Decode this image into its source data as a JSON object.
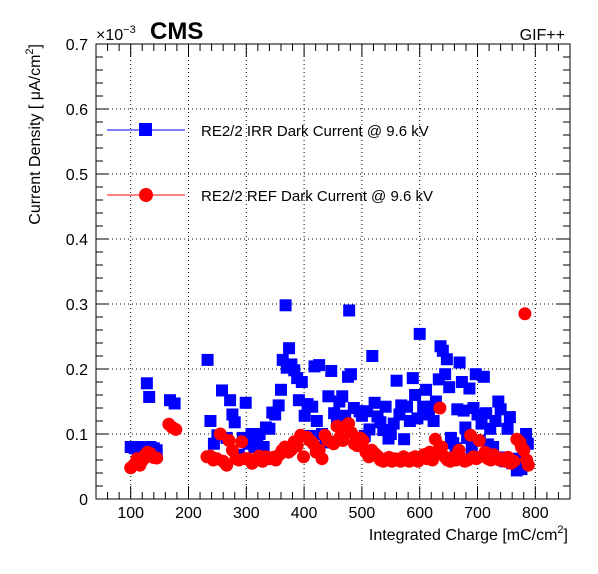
{
  "header": {
    "experiment_label": "CMS",
    "facility_label": "GIF++",
    "y_multiplier": "×10",
    "y_exponent": "−3"
  },
  "chart_data": {
    "type": "scatter",
    "xlabel": "Integrated Charge [mC/cm",
    "xlabel_sup": "2",
    "xlabel_close": "]",
    "ylabel": "Current Density [  μA/cm",
    "ylabel_sup": "2",
    "ylabel_close": "]",
    "xlim": [
      40,
      860
    ],
    "ylim": [
      0,
      0.7
    ],
    "x_ticks": [
      100,
      200,
      300,
      400,
      500,
      600,
      700,
      800
    ],
    "x_tick_labels": [
      "100",
      "200",
      "300",
      "400",
      "500",
      "600",
      "700",
      "800"
    ],
    "y_ticks": [
      0,
      0.1,
      0.2,
      0.3,
      0.4,
      0.5,
      0.6,
      0.7
    ],
    "y_tick_labels": [
      "0",
      "0.1",
      "0.2",
      "0.3",
      "0.4",
      "0.5",
      "0.6",
      "0.7"
    ],
    "grid": true,
    "legend_position": "upper-left",
    "series": [
      {
        "name": "RE2/2 IRR Dark Current @ 9.6 kV",
        "color": "#0000ff",
        "marker": "square",
        "points": [
          [
            100,
            0.08
          ],
          [
            107,
            0.078
          ],
          [
            113,
            0.08
          ],
          [
            118,
            0.077
          ],
          [
            124,
            0.078
          ],
          [
            128,
            0.178
          ],
          [
            132,
            0.157
          ],
          [
            134,
            0.08
          ],
          [
            140,
            0.078
          ],
          [
            145,
            0.075
          ],
          [
            168,
            0.152
          ],
          [
            176,
            0.147
          ],
          [
            233,
            0.214
          ],
          [
            238,
            0.12
          ],
          [
            244,
            0.085
          ],
          [
            250,
            0.098
          ],
          [
            258,
            0.167
          ],
          [
            266,
            0.094
          ],
          [
            272,
            0.152
          ],
          [
            276,
            0.13
          ],
          [
            280,
            0.118
          ],
          [
            287,
            0.068
          ],
          [
            294,
            0.094
          ],
          [
            299,
            0.148
          ],
          [
            304,
            0.085
          ],
          [
            309,
            0.1
          ],
          [
            314,
            0.08
          ],
          [
            319,
            0.097
          ],
          [
            323,
            0.1
          ],
          [
            330,
            0.08
          ],
          [
            334,
            0.11
          ],
          [
            340,
            0.108
          ],
          [
            345,
            0.133
          ],
          [
            350,
            0.13
          ],
          [
            356,
            0.144
          ],
          [
            360,
            0.168
          ],
          [
            363,
            0.214
          ],
          [
            368,
            0.298
          ],
          [
            370,
            0.202
          ],
          [
            374,
            0.232
          ],
          [
            378,
            0.207
          ],
          [
            383,
            0.198
          ],
          [
            388,
            0.186
          ],
          [
            391,
            0.152
          ],
          [
            396,
            0.18
          ],
          [
            401,
            0.128
          ],
          [
            406,
            0.146
          ],
          [
            410,
            0.097
          ],
          [
            414,
            0.142
          ],
          [
            418,
            0.204
          ],
          [
            422,
            0.12
          ],
          [
            426,
            0.206
          ],
          [
            431,
            0.1
          ],
          [
            437,
            0.087
          ],
          [
            442,
            0.158
          ],
          [
            447,
            0.197
          ],
          [
            452,
            0.132
          ],
          [
            457,
            0.118
          ],
          [
            461,
            0.15
          ],
          [
            466,
            0.158
          ],
          [
            471,
            0.128
          ],
          [
            476,
            0.188
          ],
          [
            478,
            0.29
          ],
          [
            481,
            0.192
          ],
          [
            486,
            0.14
          ],
          [
            490,
            0.088
          ],
          [
            496,
            0.135
          ],
          [
            500,
            0.128
          ],
          [
            505,
            0.097
          ],
          [
            509,
            0.135
          ],
          [
            513,
            0.107
          ],
          [
            518,
            0.22
          ],
          [
            522,
            0.148
          ],
          [
            527,
            0.127
          ],
          [
            532,
            0.118
          ],
          [
            537,
            0.106
          ],
          [
            541,
            0.142
          ],
          [
            546,
            0.093
          ],
          [
            550,
            0.1
          ],
          [
            555,
            0.116
          ],
          [
            560,
            0.182
          ],
          [
            565,
            0.13
          ],
          [
            568,
            0.144
          ],
          [
            573,
            0.092
          ],
          [
            578,
            0.142
          ],
          [
            583,
            0.12
          ],
          [
            588,
            0.186
          ],
          [
            592,
            0.16
          ],
          [
            596,
            0.124
          ],
          [
            600,
            0.254
          ],
          [
            606,
            0.142
          ],
          [
            611,
            0.168
          ],
          [
            616,
            0.13
          ],
          [
            620,
            0.142
          ],
          [
            624,
            0.12
          ],
          [
            628,
            0.15
          ],
          [
            633,
            0.184
          ],
          [
            636,
            0.235
          ],
          [
            640,
            0.228
          ],
          [
            644,
            0.192
          ],
          [
            647,
            0.215
          ],
          [
            651,
            0.172
          ],
          [
            654,
            0.094
          ],
          [
            658,
            0.086
          ],
          [
            662,
            0.078
          ],
          [
            665,
            0.138
          ],
          [
            669,
            0.21
          ],
          [
            673,
            0.18
          ],
          [
            676,
            0.136
          ],
          [
            679,
            0.11
          ],
          [
            682,
            0.094
          ],
          [
            686,
            0.17
          ],
          [
            690,
            0.078
          ],
          [
            693,
            0.14
          ],
          [
            697,
            0.192
          ],
          [
            700,
            0.13
          ],
          [
            704,
            0.09
          ],
          [
            707,
            0.116
          ],
          [
            711,
            0.188
          ],
          [
            715,
            0.132
          ],
          [
            718,
            0.084
          ],
          [
            722,
            0.108
          ],
          [
            727,
            0.08
          ],
          [
            731,
            0.12
          ],
          [
            736,
            0.15
          ],
          [
            740,
            0.138
          ],
          [
            744,
            0.064
          ],
          [
            748,
            0.058
          ],
          [
            752,
            0.108
          ],
          [
            756,
            0.126
          ],
          [
            760,
            0.055
          ],
          [
            764,
            0.06
          ],
          [
            768,
            0.044
          ],
          [
            772,
            0.062
          ],
          [
            776,
            0.046
          ],
          [
            780,
            0.085
          ],
          [
            784,
            0.1
          ],
          [
            787,
            0.085
          ]
        ]
      },
      {
        "name": "RE2/2 REF Dark Current @ 9.6 kV",
        "color": "#ff0000",
        "marker": "circle",
        "points": [
          [
            100,
            0.048
          ],
          [
            106,
            0.053
          ],
          [
            111,
            0.062
          ],
          [
            116,
            0.052
          ],
          [
            121,
            0.06
          ],
          [
            125,
            0.068
          ],
          [
            129,
            0.072
          ],
          [
            134,
            0.07
          ],
          [
            139,
            0.064
          ],
          [
            145,
            0.063
          ],
          [
            166,
            0.115
          ],
          [
            172,
            0.11
          ],
          [
            178,
            0.107
          ],
          [
            232,
            0.065
          ],
          [
            238,
            0.066
          ],
          [
            243,
            0.06
          ],
          [
            249,
            0.062
          ],
          [
            255,
            0.1
          ],
          [
            260,
            0.058
          ],
          [
            266,
            0.052
          ],
          [
            270,
            0.09
          ],
          [
            276,
            0.075
          ],
          [
            282,
            0.062
          ],
          [
            287,
            0.06
          ],
          [
            292,
            0.088
          ],
          [
            298,
            0.062
          ],
          [
            304,
            0.062
          ],
          [
            310,
            0.055
          ],
          [
            316,
            0.06
          ],
          [
            322,
            0.066
          ],
          [
            328,
            0.058
          ],
          [
            334,
            0.065
          ],
          [
            340,
            0.062
          ],
          [
            346,
            0.064
          ],
          [
            351,
            0.06
          ],
          [
            357,
            0.068
          ],
          [
            362,
            0.075
          ],
          [
            367,
            0.08
          ],
          [
            373,
            0.072
          ],
          [
            378,
            0.076
          ],
          [
            383,
            0.088
          ],
          [
            388,
            0.082
          ],
          [
            394,
            0.098
          ],
          [
            399,
            0.065
          ],
          [
            405,
            0.095
          ],
          [
            410,
            0.09
          ],
          [
            416,
            0.085
          ],
          [
            421,
            0.072
          ],
          [
            426,
            0.075
          ],
          [
            431,
            0.062
          ],
          [
            436,
            0.098
          ],
          [
            441,
            0.09
          ],
          [
            446,
            0.088
          ],
          [
            451,
            0.085
          ],
          [
            457,
            0.112
          ],
          [
            462,
            0.095
          ],
          [
            467,
            0.09
          ],
          [
            472,
            0.112
          ],
          [
            477,
            0.116
          ],
          [
            482,
            0.102
          ],
          [
            487,
            0.085
          ],
          [
            492,
            0.082
          ],
          [
            497,
            0.094
          ],
          [
            502,
            0.09
          ],
          [
            507,
            0.072
          ],
          [
            512,
            0.065
          ],
          [
            517,
            0.075
          ],
          [
            522,
            0.07
          ],
          [
            527,
            0.066
          ],
          [
            532,
            0.06
          ],
          [
            537,
            0.058
          ],
          [
            542,
            0.062
          ],
          [
            547,
            0.064
          ],
          [
            552,
            0.058
          ],
          [
            557,
            0.062
          ],
          [
            562,
            0.06
          ],
          [
            567,
            0.058
          ],
          [
            572,
            0.065
          ],
          [
            577,
            0.06
          ],
          [
            582,
            0.058
          ],
          [
            587,
            0.063
          ],
          [
            592,
            0.065
          ],
          [
            597,
            0.058
          ],
          [
            602,
            0.062
          ],
          [
            607,
            0.068
          ],
          [
            612,
            0.062
          ],
          [
            617,
            0.072
          ],
          [
            622,
            0.06
          ],
          [
            627,
            0.092
          ],
          [
            632,
            0.075
          ],
          [
            635,
            0.14
          ],
          [
            638,
            0.08
          ],
          [
            643,
            0.065
          ],
          [
            648,
            0.06
          ],
          [
            653,
            0.058
          ],
          [
            658,
            0.064
          ],
          [
            663,
            0.06
          ],
          [
            668,
            0.075
          ],
          [
            673,
            0.062
          ],
          [
            678,
            0.058
          ],
          [
            683,
            0.06
          ],
          [
            688,
            0.098
          ],
          [
            693,
            0.065
          ],
          [
            698,
            0.062
          ],
          [
            703,
            0.09
          ],
          [
            708,
            0.066
          ],
          [
            713,
            0.072
          ],
          [
            718,
            0.062
          ],
          [
            723,
            0.06
          ],
          [
            728,
            0.068
          ],
          [
            733,
            0.064
          ],
          [
            738,
            0.06
          ],
          [
            743,
            0.062
          ],
          [
            748,
            0.058
          ],
          [
            753,
            0.064
          ],
          [
            758,
            0.055
          ],
          [
            763,
            0.058
          ],
          [
            768,
            0.092
          ],
          [
            773,
            0.088
          ],
          [
            776,
            0.08
          ],
          [
            780,
            0.075
          ],
          [
            782,
            0.285
          ],
          [
            785,
            0.06
          ],
          [
            788,
            0.052
          ]
        ]
      }
    ]
  }
}
